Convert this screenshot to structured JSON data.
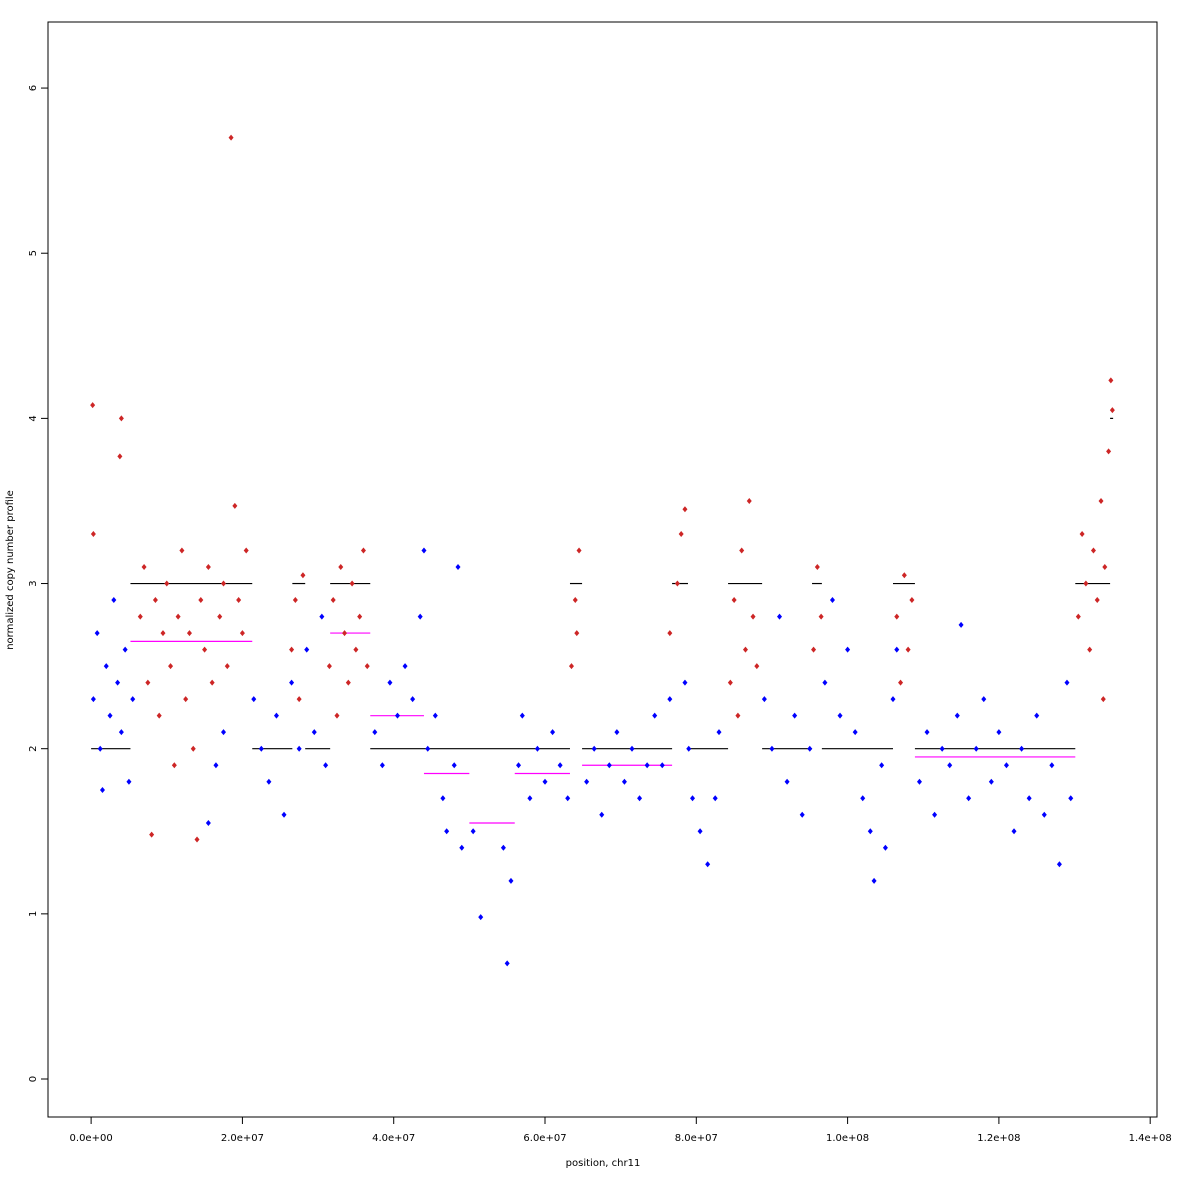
{
  "chart_data": {
    "type": "scatter",
    "xlabel": "position, chr11",
    "ylabel": "normalized copy number profile",
    "xlim": [
      -5700000,
      140900000
    ],
    "ylim": [
      -0.23,
      6.4
    ],
    "xticks": [
      {
        "value": 0,
        "label": "0.0e+00"
      },
      {
        "value": 20000000,
        "label": "2.0e+07"
      },
      {
        "value": 40000000,
        "label": "4.0e+07"
      },
      {
        "value": 60000000,
        "label": "6.0e+07"
      },
      {
        "value": 80000000,
        "label": "8.0e+07"
      },
      {
        "value": 100000000,
        "label": "1.0e+08"
      },
      {
        "value": 120000000,
        "label": "1.2e+08"
      },
      {
        "value": 140000000,
        "label": "1.4e+08"
      }
    ],
    "yticks": [
      0,
      1,
      2,
      3,
      4,
      5,
      6
    ],
    "series": [
      {
        "color": "#0000ff",
        "x": [
          300000.0,
          800000.0,
          1200000.0,
          1500000.0,
          2000000.0,
          2500000.0,
          3000000.0,
          3500000.0,
          4000000.0,
          4500000.0,
          5000000.0,
          5500000.0,
          16500000.0,
          17500000.0,
          15500000.0,
          21500000.0,
          22500000.0,
          23500000.0,
          24500000.0,
          25500000.0,
          26500000.0,
          27500000.0,
          28500000.0,
          29500000.0,
          30500000.0,
          31000000.0,
          37500000.0,
          38500000.0,
          39500000.0,
          40500000.0,
          41500000.0,
          42500000.0,
          43500000.0,
          44000000.0,
          44500000.0,
          45500000.0,
          46500000.0,
          47000000.0,
          48000000.0,
          48500000.0,
          49000000.0,
          50500000.0,
          51500000.0,
          54500000.0,
          55000000.0,
          55500000.0,
          56500000.0,
          57000000.0,
          58000000.0,
          59000000.0,
          60000000.0,
          61000000.0,
          62000000.0,
          63000000.0,
          65500000.0,
          66500000.0,
          67500000.0,
          68500000.0,
          69500000.0,
          70500000.0,
          71500000.0,
          72500000.0,
          73500000.0,
          74500000.0,
          75500000.0,
          76500000.0,
          79000000.0,
          79500000.0,
          80500000.0,
          81500000.0,
          82500000.0,
          83000000.0,
          78500000.0,
          89000000.0,
          90000000.0,
          91000000.0,
          92000000.0,
          93000000.0,
          94000000.0,
          95000000.0,
          97000000.0,
          98000000.0,
          99000000.0,
          100000000.0,
          101000000.0,
          102000000.0,
          103000000.0,
          103500000.0,
          104500000.0,
          105000000.0,
          106000000.0,
          106500000.0,
          109500000.0,
          110500000.0,
          111500000.0,
          112500000.0,
          113500000.0,
          114500000.0,
          115000000.0,
          116000000.0,
          117000000.0,
          118000000.0,
          119000000.0,
          120000000.0,
          121000000.0,
          122000000.0,
          123000000.0,
          124000000.0,
          125000000.0,
          126000000.0,
          127000000.0,
          128000000.0,
          129000000.0,
          129500000.0
        ],
        "values": [
          2.3,
          2.7,
          2.0,
          1.75,
          2.5,
          2.2,
          2.9,
          2.4,
          2.1,
          2.6,
          1.8,
          2.3,
          1.9,
          2.1,
          1.55,
          2.3,
          2.0,
          1.8,
          2.2,
          1.6,
          2.4,
          2.0,
          2.6,
          2.1,
          2.8,
          1.9,
          2.1,
          1.9,
          2.4,
          2.2,
          2.5,
          2.3,
          2.8,
          3.2,
          2.0,
          2.2,
          1.7,
          1.5,
          1.9,
          3.1,
          1.4,
          1.5,
          0.98,
          1.4,
          0.7,
          1.2,
          1.9,
          2.2,
          1.7,
          2.0,
          1.8,
          2.1,
          1.9,
          1.7,
          1.8,
          2.0,
          1.6,
          1.9,
          2.1,
          1.8,
          2.0,
          1.7,
          1.9,
          2.2,
          1.9,
          2.3,
          2.0,
          1.7,
          1.5,
          1.3,
          1.7,
          2.1,
          2.4,
          2.3,
          2.0,
          2.8,
          1.8,
          2.2,
          1.6,
          2.0,
          2.4,
          2.9,
          2.2,
          2.6,
          2.1,
          1.7,
          1.5,
          1.2,
          1.9,
          1.4,
          2.3,
          2.6,
          1.8,
          2.1,
          1.6,
          2.0,
          1.9,
          2.2,
          2.75,
          1.7,
          2.0,
          2.3,
          1.8,
          2.1,
          1.9,
          1.5,
          2.0,
          1.7,
          2.2,
          1.6,
          1.9,
          1.3,
          2.4,
          1.7
        ]
      },
      {
        "color": "#cd2626",
        "x": [
          200000.0,
          300000.0,
          3800000.0,
          4000000.0,
          6500000.0,
          7000000.0,
          7500000.0,
          8000000.0,
          8500000.0,
          9000000.0,
          9500000.0,
          10000000.0,
          10500000.0,
          11000000.0,
          11500000.0,
          12000000.0,
          12500000.0,
          13000000.0,
          13500000.0,
          14000000.0,
          14500000.0,
          15000000.0,
          15500000.0,
          16000000.0,
          17000000.0,
          17500000.0,
          18000000.0,
          18500000.0,
          19000000.0,
          19500000.0,
          20000000.0,
          20500000.0,
          26500000.0,
          27000000.0,
          27500000.0,
          28000000.0,
          31500000.0,
          32000000.0,
          32500000.0,
          33000000.0,
          33500000.0,
          34000000.0,
          34500000.0,
          35000000.0,
          35500000.0,
          36000000.0,
          36500000.0,
          63500000.0,
          64000000.0,
          64500000.0,
          64200000.0,
          76500000.0,
          77500000.0,
          78000000.0,
          78500000.0,
          84500000.0,
          85000000.0,
          85500000.0,
          86000000.0,
          86500000.0,
          87000000.0,
          87500000.0,
          88000000.0,
          95500000.0,
          96000000.0,
          96500000.0,
          106500000.0,
          107000000.0,
          107500000.0,
          108000000.0,
          108500000.0,
          130500000.0,
          131000000.0,
          131500000.0,
          132000000.0,
          132500000.0,
          133000000.0,
          133500000.0,
          134000000.0,
          134500000.0,
          134800000.0,
          135000000.0,
          133800000.0
        ],
        "values": [
          4.08,
          3.3,
          3.77,
          4.0,
          2.8,
          3.1,
          2.4,
          1.48,
          2.9,
          2.2,
          2.7,
          3.0,
          2.5,
          1.9,
          2.8,
          3.2,
          2.3,
          2.7,
          2.0,
          1.45,
          2.9,
          2.6,
          3.1,
          2.4,
          2.8,
          3.0,
          2.5,
          5.7,
          3.47,
          2.9,
          2.7,
          3.2,
          2.6,
          2.9,
          2.3,
          3.05,
          2.5,
          2.9,
          2.2,
          3.1,
          2.7,
          2.4,
          3.0,
          2.6,
          2.8,
          3.2,
          2.5,
          2.5,
          2.9,
          3.2,
          2.7,
          2.7,
          3.0,
          3.3,
          3.45,
          2.4,
          2.9,
          2.2,
          3.2,
          2.6,
          3.5,
          2.8,
          2.5,
          2.6,
          3.1,
          2.8,
          2.8,
          2.4,
          3.05,
          2.6,
          2.9,
          2.8,
          3.3,
          3.0,
          2.6,
          3.2,
          2.9,
          3.5,
          3.1,
          3.8,
          4.23,
          4.05,
          2.3
        ]
      }
    ],
    "lines": [
      {
        "color": "#000000",
        "segments": [
          {
            "x0": 0,
            "x1": 5200000,
            "y": 2
          },
          {
            "x0": 5200000,
            "x1": 21300000,
            "y": 3
          },
          {
            "x0": 21300000,
            "x1": 26600000,
            "y": 2
          },
          {
            "x0": 26600000,
            "x1": 28300000,
            "y": 3
          },
          {
            "x0": 28300000,
            "x1": 31600000,
            "y": 2
          },
          {
            "x0": 31600000,
            "x1": 36900000,
            "y": 3
          },
          {
            "x0": 36900000,
            "x1": 63300000,
            "y": 2
          },
          {
            "x0": 63300000,
            "x1": 64900000,
            "y": 3
          },
          {
            "x0": 64900000,
            "x1": 76800000,
            "y": 2
          },
          {
            "x0": 76800000,
            "x1": 78900000,
            "y": 3
          },
          {
            "x0": 78900000,
            "x1": 84200000,
            "y": 2
          },
          {
            "x0": 84200000,
            "x1": 88700000,
            "y": 3
          },
          {
            "x0": 88700000,
            "x1": 95300000,
            "y": 2
          },
          {
            "x0": 95300000,
            "x1": 96600000,
            "y": 3
          },
          {
            "x0": 96600000,
            "x1": 106000000,
            "y": 2
          },
          {
            "x0": 106000000,
            "x1": 108900000,
            "y": 3
          },
          {
            "x0": 108900000,
            "x1": 130100000,
            "y": 2
          },
          {
            "x0": 130100000,
            "x1": 134700000,
            "y": 3
          },
          {
            "x0": 134700000,
            "x1": 135100000,
            "y": 4
          }
        ]
      },
      {
        "color": "#ff00ff",
        "segments": [
          {
            "x0": 5200000,
            "x1": 21300000,
            "y": 2.65
          },
          {
            "x0": 31600000,
            "x1": 36900000,
            "y": 2.7
          },
          {
            "x0": 36900000,
            "x1": 44000000,
            "y": 2.2
          },
          {
            "x0": 44000000,
            "x1": 50000000,
            "y": 1.85
          },
          {
            "x0": 50000000,
            "x1": 56000000,
            "y": 1.55
          },
          {
            "x0": 56000000,
            "x1": 63300000,
            "y": 1.85
          },
          {
            "x0": 64900000,
            "x1": 76800000,
            "y": 1.9
          },
          {
            "x0": 108900000,
            "x1": 130100000,
            "y": 1.95
          }
        ]
      }
    ]
  }
}
